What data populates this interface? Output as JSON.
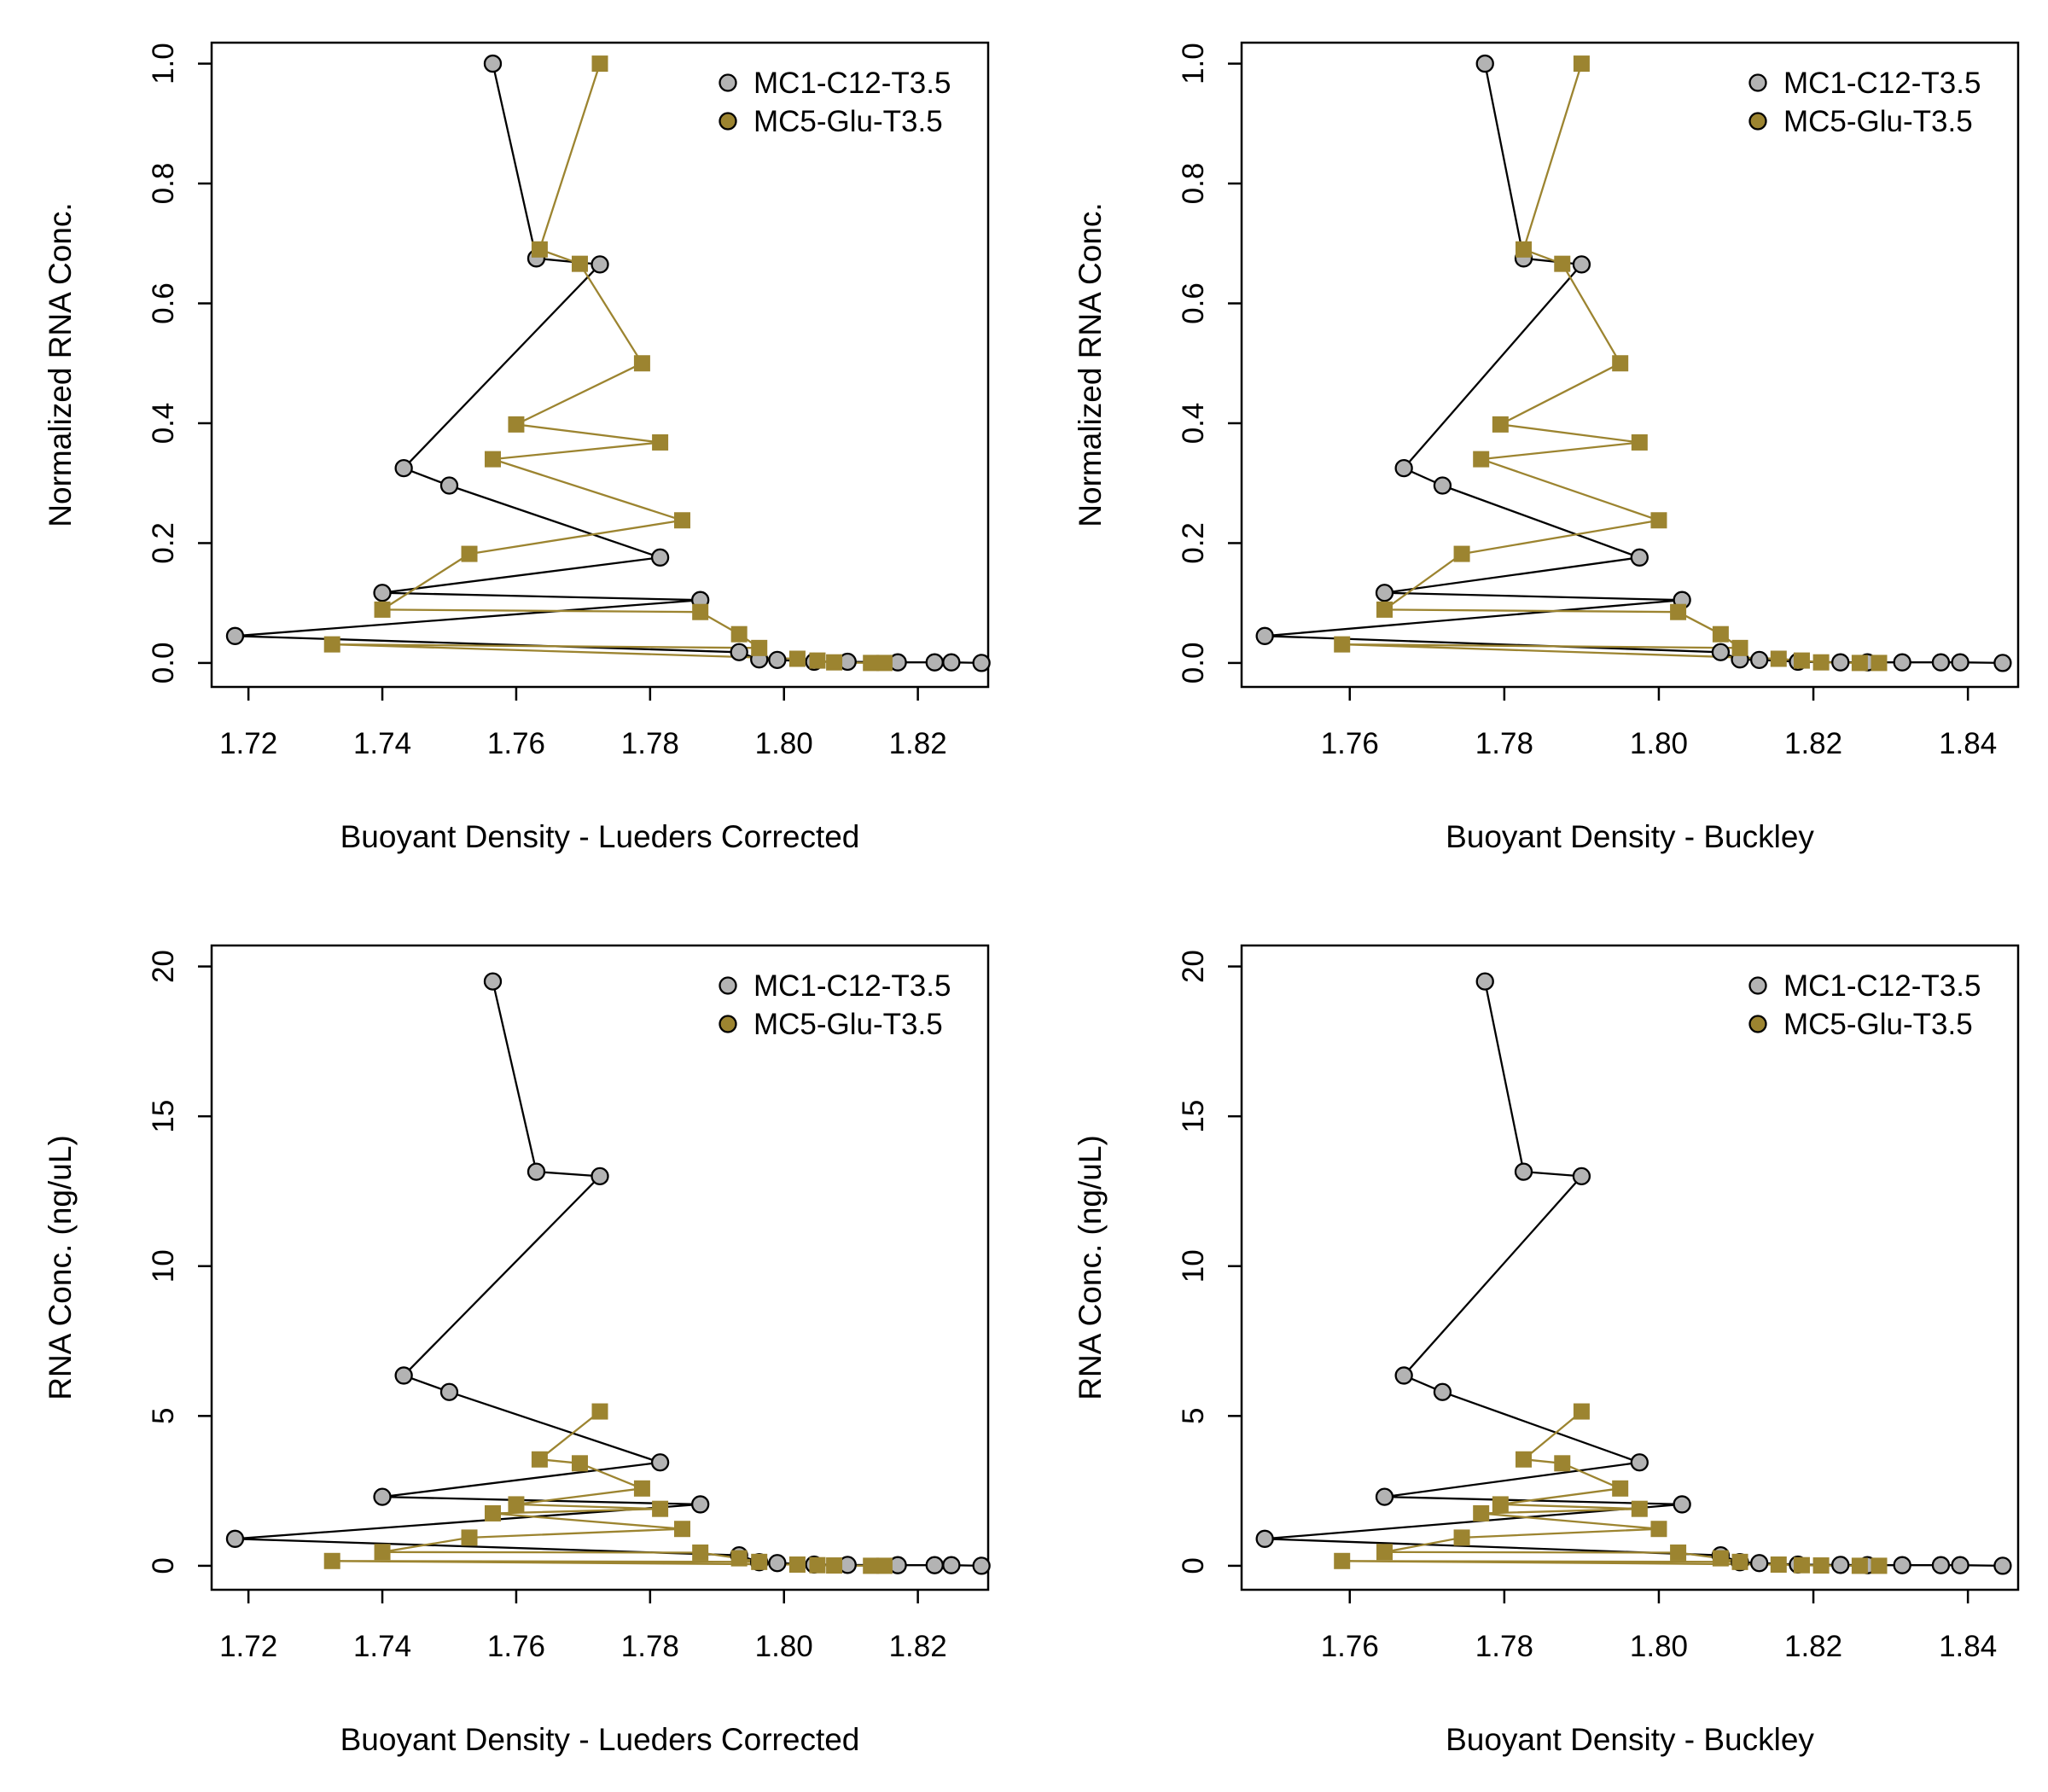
{
  "colors": {
    "mc1_fill": "#b3b3b3",
    "mc5_fill": "#9c8430",
    "mc1_line": "#000000",
    "mc5_line": "#9c8430"
  },
  "chart_data": [
    {
      "type": "line",
      "title": "",
      "xlabel": "Buoyant Density - Lueders Corrected",
      "ylabel": "Normalized RNA Conc.",
      "xlim": [
        1.7145,
        1.8305
      ],
      "ylim": [
        -0.04,
        1.035
      ],
      "xticks": [
        "1.72",
        "1.74",
        "1.76",
        "1.78",
        "1.80",
        "1.82"
      ],
      "xtick_values": [
        1.72,
        1.74,
        1.76,
        1.78,
        1.8,
        1.82
      ],
      "yticks": [
        "0.0",
        "0.2",
        "0.4",
        "0.6",
        "0.8",
        "1.0"
      ],
      "ytick_values": [
        0.0,
        0.2,
        0.4,
        0.6,
        0.8,
        1.0
      ],
      "legend_position": "top-right",
      "grid": false,
      "series": [
        {
          "name": "MC1-C12-T3.5",
          "marker": "circle",
          "x": [
            1.7565,
            1.763,
            1.7725,
            1.7432,
            1.75,
            1.7815,
            1.74,
            1.7875,
            1.718,
            1.7933,
            1.7963,
            1.799,
            1.8045,
            1.8095,
            1.817,
            1.8225,
            1.825,
            1.8295
          ],
          "y": [
            1.0,
            0.675,
            0.665,
            0.325,
            0.296,
            0.176,
            0.117,
            0.105,
            0.045,
            0.018,
            0.006,
            0.005,
            0.002,
            0.002,
            0.001,
            0.001,
            0.001,
            0.0
          ]
        },
        {
          "name": "MC5-Glu-T3.5",
          "marker": "square",
          "x": [
            1.7725,
            1.7635,
            1.7695,
            1.7788,
            1.76,
            1.7815,
            1.7565,
            1.7848,
            1.753,
            1.74,
            1.7875,
            1.7933,
            1.7963,
            1.7325,
            1.802,
            1.805,
            1.8075,
            1.813,
            1.815
          ],
          "y": [
            1.0,
            0.69,
            0.666,
            0.5,
            0.398,
            0.368,
            0.34,
            0.238,
            0.182,
            0.089,
            0.085,
            0.048,
            0.025,
            0.031,
            0.007,
            0.004,
            0.001,
            0.0,
            0.0
          ]
        }
      ]
    },
    {
      "type": "line",
      "title": "",
      "xlabel": "Buoyant Density - Buckley",
      "ylabel": "Normalized RNA Conc.",
      "xlim": [
        1.746,
        1.8465
      ],
      "ylim": [
        -0.04,
        1.035
      ],
      "xticks": [
        "1.76",
        "1.78",
        "1.80",
        "1.82",
        "1.84"
      ],
      "xtick_values": [
        1.76,
        1.78,
        1.8,
        1.82,
        1.84
      ],
      "yticks": [
        "0.0",
        "0.2",
        "0.4",
        "0.6",
        "0.8",
        "1.0"
      ],
      "ytick_values": [
        0.0,
        0.2,
        0.4,
        0.6,
        0.8,
        1.0
      ],
      "legend_position": "top-right",
      "grid": false,
      "series": [
        {
          "name": "MC1-C12-T3.5",
          "marker": "circle",
          "x": [
            1.7775,
            1.7825,
            1.79,
            1.767,
            1.772,
            1.7975,
            1.7645,
            1.803,
            1.749,
            1.808,
            1.8105,
            1.813,
            1.818,
            1.8235,
            1.827,
            1.8315,
            1.8365,
            1.839,
            1.8445
          ],
          "y": [
            1.0,
            0.675,
            0.665,
            0.325,
            0.296,
            0.176,
            0.117,
            0.105,
            0.045,
            0.018,
            0.006,
            0.005,
            0.002,
            0.001,
            0.001,
            0.001,
            0.001,
            0.001,
            0.0
          ]
        },
        {
          "name": "MC5-Glu-T3.5",
          "marker": "square",
          "x": [
            1.79,
            1.7825,
            1.7875,
            1.795,
            1.7795,
            1.7975,
            1.777,
            1.8,
            1.7745,
            1.7645,
            1.8025,
            1.808,
            1.8105,
            1.759,
            1.8155,
            1.8185,
            1.821,
            1.826,
            1.8285
          ],
          "y": [
            1.0,
            0.69,
            0.666,
            0.5,
            0.398,
            0.368,
            0.34,
            0.238,
            0.182,
            0.089,
            0.085,
            0.048,
            0.025,
            0.031,
            0.007,
            0.004,
            0.001,
            0.0,
            0.0
          ]
        }
      ]
    },
    {
      "type": "line",
      "title": "",
      "xlabel": "Buoyant Density - Lueders Corrected",
      "ylabel": "RNA Conc. (ng/uL)",
      "xlim": [
        1.7145,
        1.8305
      ],
      "ylim": [
        -0.8,
        20.7
      ],
      "xticks": [
        "1.72",
        "1.74",
        "1.76",
        "1.78",
        "1.80",
        "1.82"
      ],
      "xtick_values": [
        1.72,
        1.74,
        1.76,
        1.78,
        1.8,
        1.82
      ],
      "yticks": [
        "0",
        "5",
        "10",
        "15",
        "20"
      ],
      "ytick_values": [
        0,
        5,
        10,
        15,
        20
      ],
      "legend_position": "top-right",
      "grid": false,
      "series": [
        {
          "name": "MC1-C12-T3.5",
          "marker": "circle",
          "x": [
            1.7565,
            1.763,
            1.7725,
            1.7432,
            1.75,
            1.7815,
            1.74,
            1.7875,
            1.718,
            1.7933,
            1.7963,
            1.799,
            1.8045,
            1.8095,
            1.817,
            1.8225,
            1.825,
            1.8295
          ],
          "y": [
            19.5,
            13.15,
            13.0,
            6.35,
            5.8,
            3.45,
            2.3,
            2.05,
            0.9,
            0.35,
            0.12,
            0.09,
            0.04,
            0.03,
            0.02,
            0.02,
            0.02,
            0.0
          ]
        },
        {
          "name": "MC5-Glu-T3.5",
          "marker": "square",
          "x": [
            1.7725,
            1.7635,
            1.7695,
            1.7788,
            1.76,
            1.7815,
            1.7565,
            1.7848,
            1.753,
            1.74,
            1.7875,
            1.7933,
            1.7963,
            1.7325,
            1.802,
            1.805,
            1.8075,
            1.813,
            1.815
          ],
          "y": [
            5.15,
            3.55,
            3.42,
            2.58,
            2.05,
            1.9,
            1.75,
            1.23,
            0.94,
            0.46,
            0.44,
            0.25,
            0.13,
            0.16,
            0.04,
            0.02,
            0.01,
            0.0,
            0.0
          ]
        }
      ]
    },
    {
      "type": "line",
      "title": "",
      "xlabel": "Buoyant Density - Buckley",
      "ylabel": "RNA Conc. (ng/uL)",
      "xlim": [
        1.746,
        1.8465
      ],
      "ylim": [
        -0.8,
        20.7
      ],
      "xticks": [
        "1.76",
        "1.78",
        "1.80",
        "1.82",
        "1.84"
      ],
      "xtick_values": [
        1.76,
        1.78,
        1.8,
        1.82,
        1.84
      ],
      "yticks": [
        "0",
        "5",
        "10",
        "15",
        "20"
      ],
      "ytick_values": [
        0,
        5,
        10,
        15,
        20
      ],
      "legend_position": "top-right",
      "grid": false,
      "series": [
        {
          "name": "MC1-C12-T3.5",
          "marker": "circle",
          "x": [
            1.7775,
            1.7825,
            1.79,
            1.767,
            1.772,
            1.7975,
            1.7645,
            1.803,
            1.749,
            1.808,
            1.8105,
            1.813,
            1.818,
            1.8235,
            1.827,
            1.8315,
            1.8365,
            1.839,
            1.8445
          ],
          "y": [
            19.5,
            13.15,
            13.0,
            6.35,
            5.8,
            3.45,
            2.3,
            2.05,
            0.9,
            0.35,
            0.12,
            0.09,
            0.04,
            0.03,
            0.02,
            0.02,
            0.02,
            0.02,
            0.0
          ]
        },
        {
          "name": "MC5-Glu-T3.5",
          "marker": "square",
          "x": [
            1.79,
            1.7825,
            1.7875,
            1.795,
            1.7795,
            1.7975,
            1.777,
            1.8,
            1.7745,
            1.7645,
            1.8025,
            1.808,
            1.8105,
            1.759,
            1.8155,
            1.8185,
            1.821,
            1.826,
            1.8285
          ],
          "y": [
            5.15,
            3.55,
            3.42,
            2.58,
            2.05,
            1.9,
            1.75,
            1.23,
            0.94,
            0.46,
            0.44,
            0.25,
            0.13,
            0.16,
            0.04,
            0.02,
            0.01,
            0.0,
            0.0
          ]
        }
      ]
    }
  ]
}
